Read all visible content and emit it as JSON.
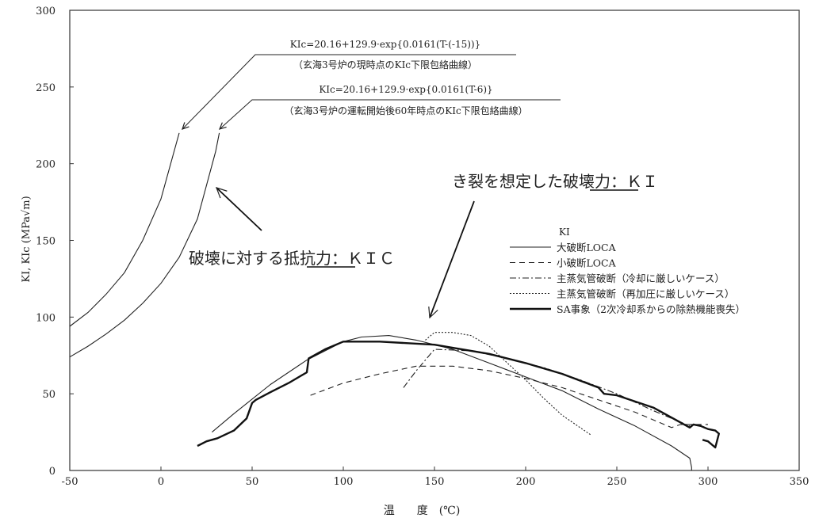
{
  "chart_data": {
    "type": "line",
    "xlabel": "温　　度　(℃)",
    "ylabel": "KI, KIc (MPa√m)",
    "xlim": [
      -50,
      350
    ],
    "ylim": [
      0,
      300
    ],
    "xticks": [
      -50,
      0,
      50,
      100,
      150,
      200,
      250,
      300,
      350
    ],
    "yticks": [
      0,
      50,
      100,
      150,
      200,
      250,
      300
    ],
    "resistance_curves": [
      {
        "name": "KIc=20.16+129.9·exp{0.0161(T-(-15))}",
        "note": "（玄海3号炉の現時点のKIc下限包絡曲線）",
        "x": [
          -50,
          -40,
          -30,
          -20,
          -10,
          0,
          10
        ],
        "y": [
          94,
          103,
          115,
          129,
          150,
          177,
          220
        ]
      },
      {
        "name": "KIc=20.16+129.9·exp{0.0161(T-6)}",
        "note": "（玄海3号炉の運転開始後60年時点のKIc下限包絡曲線）",
        "x": [
          -50,
          -40,
          -30,
          -20,
          -10,
          0,
          10,
          20,
          30,
          32
        ],
        "y": [
          74,
          81,
          89,
          98,
          109,
          122,
          139,
          164,
          208,
          220
        ]
      }
    ],
    "legend_title": "KI",
    "series": [
      {
        "name": "大破断LOCA",
        "style": "solid",
        "x": [
          28,
          40,
          60,
          80,
          100,
          110,
          125,
          140,
          160,
          180,
          200,
          220,
          240,
          260,
          280,
          290,
          291,
          291
        ],
        "y": [
          25,
          37,
          56,
          72,
          84,
          87,
          88,
          85,
          79,
          70,
          61,
          52,
          40,
          29,
          16,
          8,
          2,
          0
        ]
      },
      {
        "name": "小破断LOCA",
        "style": "dashed",
        "x": [
          82,
          100,
          120,
          140,
          160,
          180,
          200,
          220,
          240,
          260,
          280,
          285,
          300
        ],
        "y": [
          49,
          57,
          63,
          68,
          68,
          65,
          60,
          54,
          46,
          38,
          28,
          30,
          30
        ]
      },
      {
        "name": "主蒸気管破断（冷却に厳しいケース）",
        "style": "dashdot",
        "x": [
          133,
          140,
          150,
          170,
          190,
          210,
          230,
          250,
          270,
          290
        ],
        "y": [
          54,
          65,
          79,
          78,
          73,
          67,
          59,
          50,
          39,
          29
        ]
      },
      {
        "name": "主蒸気管破断（再加圧に厳しいケース）",
        "style": "dotted",
        "x": [
          145,
          150,
          160,
          170,
          180,
          190,
          200,
          210,
          220,
          236
        ],
        "y": [
          85,
          90,
          90,
          88,
          81,
          70,
          59,
          47,
          36,
          23
        ]
      },
      {
        "name": "SA事象（2次冷却系からの除熱機能喪失）",
        "style": "bold",
        "x": [
          20,
          25,
          31,
          40,
          47,
          50,
          52,
          60,
          70,
          80,
          81,
          90,
          100,
          120,
          150,
          180,
          200,
          220,
          240,
          243,
          250,
          260,
          270,
          290,
          292,
          296,
          300,
          304,
          306,
          304,
          300,
          297
        ],
        "y": [
          16,
          19,
          21,
          26,
          34,
          44,
          46,
          51,
          57,
          64,
          73,
          79,
          84,
          84,
          82,
          76,
          70,
          63,
          54,
          50,
          49,
          45,
          41,
          28,
          30,
          29,
          27,
          26,
          24,
          15,
          19,
          20
        ]
      }
    ],
    "annotations": {
      "resistance_label": "破壊に対する抵抗力：ＫＩＣ",
      "resistance_underline": "抵抗力",
      "crack_label": "き裂を想定した破壊力：ＫＩ",
      "crack_underline": "破壊力"
    }
  }
}
